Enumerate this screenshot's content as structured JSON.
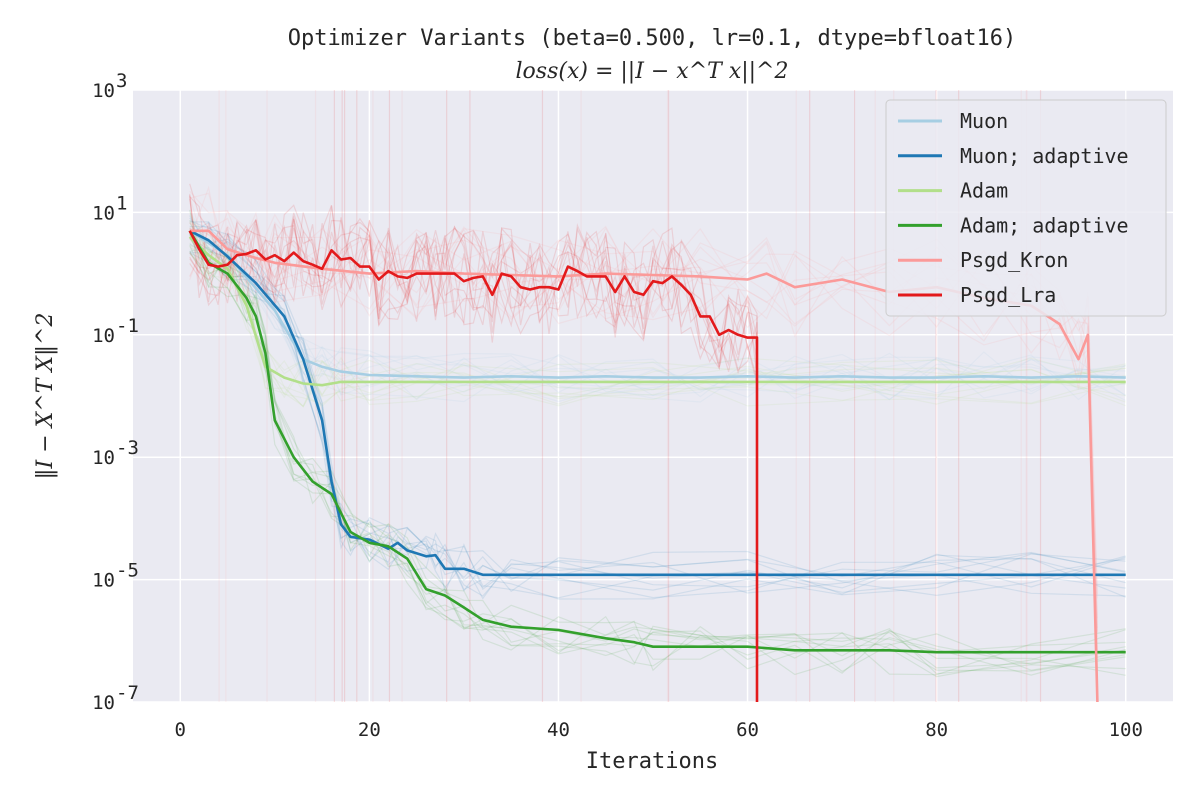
{
  "chart_data": {
    "type": "line",
    "title": "Optimizer Variants (beta=0.500, lr=0.1, dtype=bfloat16)",
    "subtitle": "loss(x) = ||I − x^T x||^2",
    "xlabel": "Iterations",
    "ylabel": "‖I − X^T X‖^2",
    "yscale": "log",
    "xlim": [
      -5,
      105
    ],
    "ylim": [
      1e-07,
      1000
    ],
    "x_ticks": [
      0,
      20,
      40,
      60,
      80,
      100
    ],
    "y_ticks": [
      {
        "value": 1000,
        "base": "10",
        "exp": "3"
      },
      {
        "value": 10,
        "base": "10",
        "exp": "1"
      },
      {
        "value": 0.1,
        "base": "10",
        "exp": "-1"
      },
      {
        "value": 0.001,
        "base": "10",
        "exp": "-3"
      },
      {
        "value": 1e-05,
        "base": "10",
        "exp": "-5"
      },
      {
        "value": 1e-07,
        "base": "10",
        "exp": "-7"
      }
    ],
    "grid": true,
    "legend_position": "top-right",
    "background": "#eaeaf2",
    "series": [
      {
        "name": "Muon",
        "color": "#a6cee3",
        "x": [
          1,
          5,
          10,
          13,
          15,
          17,
          20,
          25,
          30,
          35,
          40,
          45,
          50,
          55,
          60,
          65,
          70,
          75,
          80,
          85,
          90,
          95,
          100
        ],
        "values": [
          5,
          2,
          0.25,
          0.04,
          0.03,
          0.025,
          0.022,
          0.021,
          0.02,
          0.021,
          0.02,
          0.021,
          0.02,
          0.02,
          0.021,
          0.02,
          0.021,
          0.02,
          0.02,
          0.021,
          0.02,
          0.021,
          0.02
        ]
      },
      {
        "name": "Muon; adaptive",
        "color": "#1f78b4",
        "x": [
          1,
          3,
          5,
          8,
          11,
          13,
          15,
          16,
          17,
          18,
          20,
          22,
          23,
          24,
          26,
          27,
          28,
          30,
          32,
          35,
          40,
          50,
          60,
          70,
          80,
          90,
          100
        ],
        "values": [
          5,
          3.5,
          1.9,
          0.7,
          0.2,
          0.04,
          0.004,
          0.0004,
          8e-05,
          5e-05,
          4.5e-05,
          3.2e-05,
          4e-05,
          3e-05,
          2.4e-05,
          2.5e-05,
          1.5e-05,
          1.5e-05,
          1.2e-05,
          1.2e-05,
          1.2e-05,
          1.2e-05,
          1.2e-05,
          1.2e-05,
          1.2e-05,
          1.2e-05,
          1.2e-05
        ]
      },
      {
        "name": "Adam",
        "color": "#b2df8a",
        "x": [
          1,
          3,
          5,
          7,
          9,
          11,
          13,
          15,
          17,
          20,
          25,
          30,
          40,
          50,
          60,
          70,
          80,
          90,
          100
        ],
        "values": [
          4,
          2,
          1.2,
          0.3,
          0.03,
          0.02,
          0.016,
          0.015,
          0.017,
          0.017,
          0.017,
          0.017,
          0.017,
          0.017,
          0.017,
          0.017,
          0.017,
          0.017,
          0.017
        ]
      },
      {
        "name": "Adam; adaptive",
        "color": "#33a02c",
        "x": [
          1,
          3,
          5,
          7,
          8,
          9,
          10,
          12,
          14,
          16,
          18,
          20,
          22,
          24,
          26,
          28,
          30,
          32,
          35,
          40,
          45,
          48,
          50,
          55,
          60,
          65,
          70,
          75,
          80,
          90,
          100
        ],
        "values": [
          5,
          1.5,
          1,
          0.4,
          0.2,
          0.05,
          0.004,
          0.001,
          0.0004,
          0.00025,
          6e-05,
          4e-05,
          3.5e-05,
          2.2e-05,
          7e-06,
          5.5e-06,
          3.5e-06,
          2.2e-06,
          1.7e-06,
          1.5e-06,
          1.1e-06,
          9.5e-07,
          8e-07,
          8e-07,
          8e-07,
          7e-07,
          7e-07,
          7e-07,
          6.5e-07,
          6.5e-07,
          6.5e-07
        ]
      },
      {
        "name": "Psgd_Kron",
        "color": "#fb9a99",
        "x": [
          1,
          3,
          5,
          8,
          10,
          15,
          20,
          25,
          30,
          35,
          40,
          45,
          50,
          55,
          60,
          62,
          65,
          70,
          75,
          80,
          85,
          90,
          93,
          95,
          96,
          97
        ],
        "values": [
          5,
          5,
          2.5,
          1.8,
          1.5,
          1.2,
          1.0,
          1.1,
          1.0,
          0.95,
          0.9,
          1.0,
          0.95,
          0.9,
          0.8,
          1.0,
          0.6,
          0.8,
          0.5,
          0.6,
          0.4,
          0.3,
          0.15,
          0.04,
          0.1,
          1e-07
        ]
      },
      {
        "name": "Psgd_Lra",
        "color": "#e31a1c",
        "x": [
          1,
          2,
          3,
          4,
          5,
          6,
          7,
          8,
          9,
          10,
          11,
          12,
          13,
          14,
          15,
          16,
          17,
          18,
          19,
          20,
          21,
          22,
          23,
          24,
          25,
          26,
          27,
          28,
          29,
          30,
          31,
          32,
          33,
          34,
          35,
          36,
          37,
          38,
          39,
          40,
          41,
          42,
          43,
          44,
          45,
          46,
          47,
          48,
          49,
          50,
          51,
          52,
          53,
          54,
          55,
          56,
          57,
          58,
          59,
          60,
          61,
          61
        ],
        "values": [
          5,
          2.5,
          1.4,
          1.3,
          1.4,
          2.0,
          2.1,
          2.4,
          1.7,
          2.0,
          1.6,
          2.2,
          1.6,
          1.4,
          1.2,
          2.4,
          1.7,
          1.8,
          1.3,
          1.3,
          0.8,
          1.1,
          0.9,
          0.85,
          1.0,
          1.0,
          1.0,
          1.0,
          1.0,
          0.75,
          0.85,
          0.9,
          0.45,
          1.0,
          0.9,
          0.6,
          0.55,
          0.6,
          0.6,
          0.55,
          1.3,
          1.1,
          0.9,
          0.9,
          0.9,
          0.5,
          0.9,
          0.5,
          0.45,
          0.75,
          0.7,
          0.9,
          0.65,
          0.45,
          0.2,
          0.2,
          0.1,
          0.12,
          0.1,
          0.09,
          0.09,
          1e-07
        ]
      }
    ]
  }
}
